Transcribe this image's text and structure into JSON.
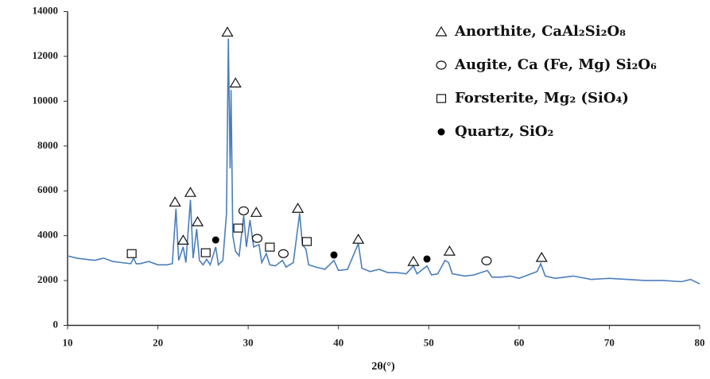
{
  "chart_data": {
    "type": "line",
    "x_label": "2θ(°)",
    "xlim": [
      10,
      80
    ],
    "xticks": [
      10,
      20,
      30,
      40,
      50,
      60,
      70,
      80
    ],
    "ylim": [
      0,
      14000
    ],
    "yticks": [
      0,
      2000,
      4000,
      6000,
      8000,
      10000,
      12000,
      14000
    ],
    "series": [
      {
        "color": "#4a7ebb",
        "x": [
          10,
          11,
          12,
          13,
          14,
          15,
          16,
          17,
          17.3,
          17.6,
          18,
          19,
          20,
          21,
          21.6,
          22,
          22.3,
          22.8,
          23.1,
          23.6,
          23.9,
          24.3,
          24.6,
          25,
          25.4,
          25.8,
          26.4,
          26.7,
          27.2,
          27.6,
          27.8,
          28.0,
          28.1,
          28.3,
          28.6,
          29.0,
          29.5,
          29.8,
          30.2,
          30.6,
          31.2,
          31.5,
          32,
          32.4,
          33,
          33.8,
          34.2,
          35,
          35.7,
          36,
          36.4,
          36.7,
          37.5,
          38.5,
          39.5,
          40,
          41,
          42.2,
          42.6,
          43.5,
          44.5,
          45.5,
          46.5,
          47.5,
          48.3,
          48.7,
          49.8,
          50.3,
          51,
          51.8,
          52.2,
          52.6,
          54,
          55,
          56.5,
          57,
          58,
          59,
          60,
          61,
          62,
          62.4,
          62.9,
          64,
          66,
          68,
          70,
          72,
          74,
          76,
          78,
          79,
          80
        ],
        "values": [
          3100,
          3000,
          2950,
          2900,
          3000,
          2850,
          2800,
          2750,
          3000,
          2750,
          2750,
          2850,
          2700,
          2700,
          2750,
          5200,
          2900,
          3500,
          2800,
          5600,
          3000,
          4300,
          2900,
          2700,
          2950,
          2700,
          3500,
          2700,
          2900,
          5000,
          12800,
          7000,
          10500,
          4000,
          3300,
          3100,
          4900,
          3500,
          4700,
          3500,
          3600,
          2800,
          3200,
          2700,
          2650,
          2900,
          2600,
          2800,
          5000,
          3600,
          3400,
          2700,
          2600,
          2500,
          2900,
          2450,
          2500,
          3650,
          2550,
          2400,
          2500,
          2350,
          2350,
          2300,
          2650,
          2300,
          2650,
          2250,
          2300,
          2900,
          2800,
          2300,
          2200,
          2250,
          2450,
          2150,
          2150,
          2200,
          2100,
          2250,
          2400,
          2750,
          2200,
          2100,
          2200,
          2050,
          2100,
          2050,
          2000,
          2000,
          1950,
          2050,
          1850
        ]
      }
    ],
    "markers": [
      {
        "name": "Anorthite, CaAl₂Si₂O₈",
        "symbol": "triangle",
        "x": [
          21.9,
          22.8,
          23.6,
          24.4,
          27.7,
          28.6,
          30.9,
          35.5,
          42.2,
          48.3,
          52.3,
          62.5
        ],
        "values": [
          5500,
          3800,
          5930,
          4620,
          13080,
          10810,
          5040,
          5220,
          3840,
          2850,
          3310,
          3030
        ]
      },
      {
        "name": "Augite, Ca (Fe, Mg) Si₂O₆",
        "symbol": "circle",
        "x": [
          29.5,
          31.0,
          33.9,
          56.4
        ],
        "values": [
          5110,
          3880,
          3200,
          2880
        ]
      },
      {
        "name": "Forsterite, Mg₂ (SiO₄)",
        "symbol": "square",
        "x": [
          17.1,
          25.3,
          28.9,
          32.4,
          36.5
        ],
        "values": [
          3200,
          3240,
          4340,
          3490,
          3740
        ]
      },
      {
        "name": "Quartz, SiO₂",
        "symbol": "dot",
        "x": [
          26.4,
          39.5,
          49.8
        ],
        "values": [
          3810,
          3140,
          2960
        ]
      }
    ]
  }
}
